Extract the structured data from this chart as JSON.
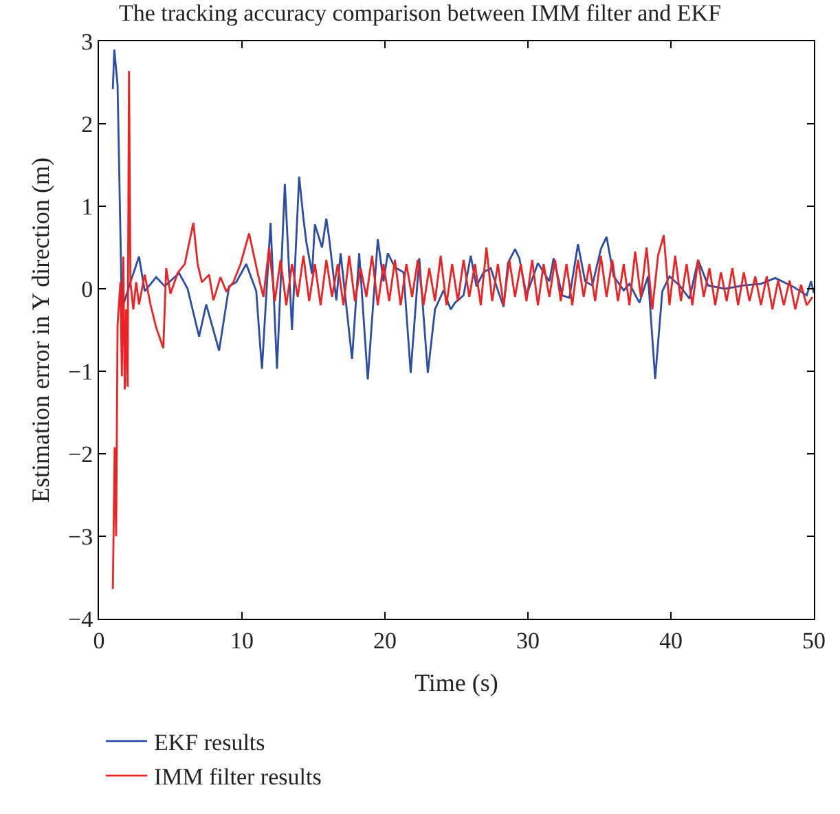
{
  "chart_data": {
    "type": "line",
    "title": "The tracking accuracy comparison between IMM filter and EKF",
    "xlabel": "Time (s)",
    "ylabel": "Estimation error in Y direction (m)",
    "xlim": [
      0,
      50
    ],
    "xticks": [
      0,
      10,
      20,
      30,
      40,
      50
    ],
    "ylim": [
      -4,
      3
    ],
    "yticks": [
      {
        "value": -4,
        "label": "−4"
      },
      {
        "value": -3,
        "label": "−3"
      },
      {
        "value": -2,
        "label": "−2"
      },
      {
        "value": -1,
        "label": "−1"
      },
      0,
      1,
      2,
      3
    ],
    "legend": "bottom left",
    "marker": "none",
    "line_style": "solid",
    "series": [
      {
        "name": "EKF results",
        "color": "#2a4ea6",
        "x": [
          0.97,
          1.07,
          1.3,
          1.6,
          2.2,
          2.8,
          3.2,
          4.0,
          4.6,
          5.6,
          6.2,
          7.0,
          7.5,
          8.4,
          9.1,
          9.6,
          10.3,
          11.0,
          11.3,
          11.4,
          12.0,
          12.45,
          13.0,
          13.5,
          14.0,
          14.3,
          14.5,
          14.9,
          15.1,
          15.6,
          15.9,
          16.1,
          16.6,
          16.9,
          17.7,
          18.2,
          18.8,
          19.5,
          19.9,
          20.2,
          20.7,
          21.3,
          21.8,
          22.4,
          23.0,
          23.5,
          24.1,
          24.6,
          24.9,
          25.5,
          26.0,
          26.4,
          26.9,
          27.4,
          27.9,
          28.3,
          28.6,
          29.1,
          29.4,
          29.9,
          30.7,
          31.5,
          31.8,
          32.4,
          32.9,
          33.5,
          34.0,
          34.5,
          35.1,
          35.5,
          36.0,
          36.7,
          37.1,
          37.8,
          38.4,
          38.9,
          39.4,
          39.9,
          40.6,
          41.3,
          41.9,
          42.6,
          43.8,
          45.1,
          46.3,
          47.3,
          48.6,
          49.5,
          49.8,
          50.0
        ],
        "values": [
          2.42,
          2.9,
          2.47,
          -0.25,
          0.08,
          0.39,
          -0.03,
          0.14,
          0.03,
          0.19,
          0.0,
          -0.58,
          -0.19,
          -0.75,
          0.03,
          0.08,
          0.3,
          -0.03,
          -0.75,
          -0.97,
          0.8,
          -0.97,
          1.27,
          -0.5,
          1.36,
          0.85,
          0.57,
          0.18,
          0.78,
          0.5,
          0.85,
          0.61,
          -0.14,
          0.43,
          -0.85,
          0.43,
          -1.1,
          0.6,
          0.09,
          0.43,
          0.26,
          0.2,
          -1.02,
          0.37,
          -1.02,
          -0.25,
          -0.02,
          -0.25,
          -0.17,
          -0.08,
          0.4,
          0.03,
          0.2,
          0.25,
          -0.02,
          -0.22,
          0.31,
          0.48,
          0.37,
          -0.08,
          0.31,
          0.09,
          0.37,
          -0.08,
          -0.11,
          0.54,
          0.09,
          0.04,
          0.48,
          0.63,
          0.15,
          -0.02,
          0.06,
          -0.17,
          0.15,
          -1.09,
          -0.03,
          0.15,
          0.04,
          -0.12,
          0.35,
          0.04,
          0.0,
          0.04,
          0.06,
          0.13,
          0.02,
          -0.08,
          0.09,
          -0.05
        ]
      },
      {
        "name": "IMM filter results",
        "color": "#ee2222",
        "x": [
          0.97,
          1.1,
          1.2,
          1.3,
          1.5,
          1.6,
          1.7,
          1.8,
          1.9,
          2.0,
          2.1,
          2.2,
          2.4,
          2.6,
          2.8,
          3.2,
          3.6,
          4.0,
          4.5,
          4.7,
          5.0,
          5.5,
          6.0,
          6.6,
          6.9,
          7.2,
          7.7,
          8.0,
          8.5,
          8.9,
          9.4,
          9.9,
          10.5,
          11.1,
          11.5,
          11.9,
          12.3,
          12.7,
          13.1,
          13.5,
          13.9,
          14.3,
          14.7,
          15.1,
          15.5,
          15.9,
          16.3,
          16.7,
          17.1,
          17.5,
          17.9,
          18.3,
          18.7,
          19.1,
          19.5,
          19.9,
          20.3,
          20.7,
          21.1,
          21.5,
          21.9,
          22.3,
          22.7,
          23.1,
          23.5,
          23.9,
          24.3,
          24.7,
          25.1,
          25.5,
          25.9,
          26.3,
          26.7,
          27.1,
          27.5,
          27.9,
          28.3,
          28.7,
          29.1,
          29.5,
          29.9,
          30.3,
          30.7,
          31.1,
          31.5,
          31.9,
          32.3,
          32.7,
          33.1,
          33.5,
          33.9,
          34.3,
          34.7,
          35.1,
          35.5,
          35.9,
          36.3,
          36.7,
          37.1,
          37.5,
          37.9,
          38.3,
          38.7,
          39.1,
          39.5,
          39.9,
          40.3,
          40.7,
          41.1,
          41.5,
          41.9,
          42.3,
          42.7,
          43.1,
          43.5,
          43.9,
          44.3,
          44.7,
          45.1,
          45.5,
          45.9,
          46.3,
          46.7,
          47.1,
          47.5,
          47.9,
          48.3,
          48.7,
          49.1,
          49.5,
          49.9
        ],
        "values": [
          -3.64,
          -1.92,
          -3.0,
          -0.44,
          0.08,
          -1.06,
          0.39,
          -1.22,
          -0.25,
          -1.19,
          2.64,
          0.08,
          -0.25,
          0.08,
          -0.19,
          0.17,
          -0.19,
          -0.47,
          -0.72,
          0.25,
          -0.06,
          0.19,
          0.3,
          0.8,
          0.3,
          0.08,
          0.17,
          -0.14,
          0.14,
          -0.03,
          0.08,
          0.3,
          0.67,
          0.19,
          -0.1,
          0.5,
          -0.15,
          0.35,
          -0.2,
          0.3,
          -0.1,
          0.4,
          -0.15,
          0.3,
          -0.2,
          0.35,
          -0.1,
          0.3,
          -0.2,
          0.4,
          -0.15,
          0.25,
          -0.1,
          0.4,
          -0.2,
          0.3,
          -0.15,
          0.35,
          -0.2,
          0.3,
          -0.1,
          0.35,
          -0.2,
          0.25,
          -0.15,
          0.4,
          -0.2,
          0.3,
          -0.15,
          0.35,
          -0.1,
          0.3,
          -0.2,
          0.5,
          -0.15,
          0.3,
          -0.2,
          0.35,
          -0.1,
          0.3,
          -0.15,
          0.35,
          -0.2,
          0.3,
          -0.1,
          0.35,
          -0.15,
          0.3,
          -0.2,
          0.35,
          -0.1,
          0.3,
          -0.15,
          0.4,
          -0.1,
          0.35,
          -0.15,
          0.3,
          -0.2,
          0.45,
          -0.1,
          0.5,
          -0.25,
          0.4,
          0.65,
          -0.2,
          0.4,
          -0.15,
          0.3,
          -0.2,
          0.35,
          -0.1,
          0.25,
          -0.2,
          0.2,
          -0.15,
          0.25,
          -0.2,
          0.2,
          -0.15,
          0.15,
          -0.2,
          0.15,
          -0.25,
          0.1,
          -0.2,
          0.1,
          -0.25,
          0.05,
          -0.2,
          -0.1
        ]
      }
    ]
  }
}
